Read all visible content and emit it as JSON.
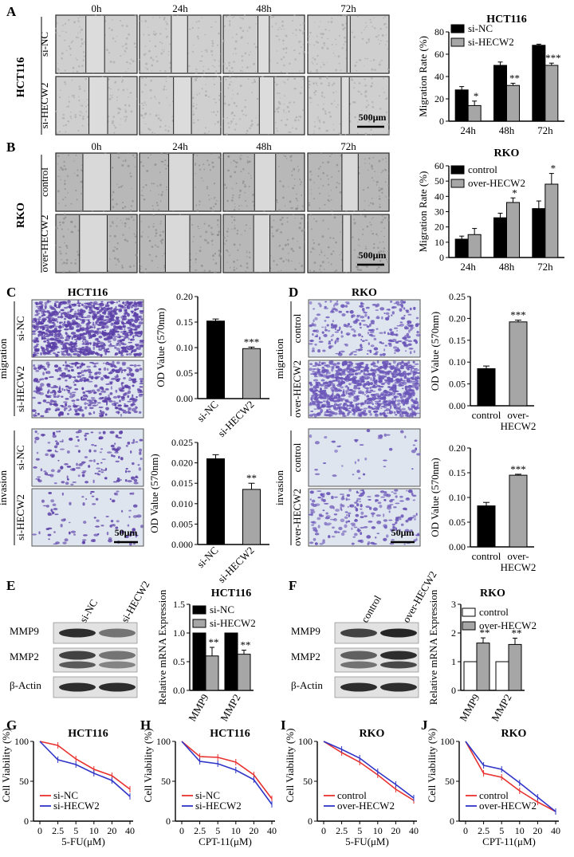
{
  "panels": {
    "A": {
      "label": "A",
      "times": [
        "0h",
        "24h",
        "48h",
        "72h"
      ],
      "cell_line": "HCT116",
      "rows": [
        "si-NC",
        "si-HECW2"
      ],
      "scale": "500μm",
      "bg": "#cfcfcf",
      "gap_fraction_0h_24h_48h_72h": [
        0.23,
        0.2,
        0.14,
        0.04
      ]
    },
    "B": {
      "label": "B",
      "times": [
        "0h",
        "24h",
        "48h",
        "72h"
      ],
      "cell_line": "RKO",
      "rows": [
        "control",
        "over-HECW2"
      ],
      "scale": "500μm",
      "bg": "#b8b8b8"
    },
    "C": {
      "label": "C",
      "title": "HCT116",
      "row_group_1": "migration",
      "row_group_2": "invasion",
      "rows": [
        "si-NC",
        "si-HECW2"
      ],
      "scale": "50μm",
      "stain_color": "#5b3fa8"
    },
    "D": {
      "label": "D",
      "title": "RKO",
      "row_group_1": "migration",
      "row_group_2": "invasion",
      "rows": [
        "control",
        "over-HECW2"
      ],
      "scale": "50μm",
      "stain_color": "#6a55b8"
    },
    "E": {
      "label": "E",
      "lanes": [
        "si-NC",
        "si-HECW2"
      ],
      "blots": [
        "MMP9",
        "MMP2",
        "β-Actin"
      ]
    },
    "F": {
      "label": "F",
      "lanes": [
        "control",
        "over-HECW2"
      ],
      "blots": [
        "MMP9",
        "MMP2",
        "β-Actin"
      ]
    },
    "G": {
      "label": "G"
    },
    "H": {
      "label": "H"
    },
    "I": {
      "label": "I"
    },
    "J": {
      "label": "J"
    }
  },
  "chart_data": [
    {
      "id": "A-chart",
      "type": "bar",
      "title": "HCT116",
      "ylabel": "Migration Rate (%)",
      "categories": [
        "24h",
        "48h",
        "72h"
      ],
      "ylim": [
        0,
        80
      ],
      "yticks": [
        0,
        20,
        40,
        60,
        80
      ],
      "legend": "top-left",
      "series": [
        {
          "name": "si-NC",
          "values": [
            28,
            50,
            68
          ],
          "errors": [
            3,
            3,
            1
          ],
          "color": "#000000"
        },
        {
          "name": "si-HECW2",
          "values": [
            14,
            32,
            50
          ],
          "errors": [
            4,
            2,
            2
          ],
          "color": "#a6a6a6"
        }
      ],
      "significance": [
        "*",
        "**",
        "***"
      ]
    },
    {
      "id": "B-chart",
      "type": "bar",
      "title": "RKO",
      "ylabel": "Migration Rate (%)",
      "categories": [
        "24h",
        "48h",
        "72h"
      ],
      "ylim": [
        0,
        60
      ],
      "yticks": [
        0,
        10,
        20,
        30,
        40,
        50,
        60
      ],
      "legend": "top-left",
      "series": [
        {
          "name": "control",
          "values": [
            12,
            26,
            32
          ],
          "errors": [
            2,
            3,
            5
          ],
          "color": "#000000"
        },
        {
          "name": "over-HECW2",
          "values": [
            15,
            36,
            48
          ],
          "errors": [
            4,
            3,
            7
          ],
          "color": "#a6a6a6"
        }
      ],
      "significance": [
        "",
        "*",
        "*"
      ]
    },
    {
      "id": "C-migration",
      "type": "bar",
      "ylabel": "OD Value (570nm)",
      "categories": [
        "si-NC",
        "si-HECW2"
      ],
      "ylim": [
        0,
        0.2
      ],
      "yticks": [
        "0.00",
        "0.05",
        "0.10",
        "0.15",
        "0.20"
      ],
      "series": [
        {
          "values": [
            0.152,
            0.098
          ],
          "errors": [
            0.004,
            0.003
          ],
          "colors": [
            "#000000",
            "#a6a6a6"
          ]
        }
      ],
      "significance": [
        "",
        "***"
      ]
    },
    {
      "id": "C-invasion",
      "type": "bar",
      "ylabel": "OD Value (570nm)",
      "categories": [
        "si-NC",
        "si-HECW2"
      ],
      "ylim": [
        0,
        0.025
      ],
      "yticks": [
        "0.000",
        "0.005",
        "0.010",
        "0.015",
        "0.020",
        "0.025"
      ],
      "series": [
        {
          "values": [
            0.021,
            0.0135
          ],
          "errors": [
            0.001,
            0.0015
          ],
          "colors": [
            "#000000",
            "#a6a6a6"
          ]
        }
      ],
      "significance": [
        "",
        "**"
      ]
    },
    {
      "id": "D-migration",
      "type": "bar",
      "ylabel": "OD Value (570nm)",
      "categories": [
        "control",
        "over-HECW2"
      ],
      "category_lines": [
        [
          "control"
        ],
        [
          "over-",
          "HECW2"
        ]
      ],
      "ylim": [
        0,
        0.25
      ],
      "yticks": [
        "0.00",
        "0.05",
        "0.10",
        "0.15",
        "0.20",
        "0.25"
      ],
      "series": [
        {
          "values": [
            0.085,
            0.192
          ],
          "errors": [
            0.006,
            0.004
          ],
          "colors": [
            "#000000",
            "#a6a6a6"
          ]
        }
      ],
      "significance": [
        "",
        "***"
      ]
    },
    {
      "id": "D-invasion",
      "type": "bar",
      "ylabel": "OD Value (570nm)",
      "categories": [
        "control",
        "over-HECW2"
      ],
      "category_lines": [
        [
          "control"
        ],
        [
          "over-",
          "HECW2"
        ]
      ],
      "ylim": [
        0,
        0.2
      ],
      "yticks": [
        "0.00",
        "0.05",
        "0.10",
        "0.15",
        "0.20"
      ],
      "series": [
        {
          "values": [
            0.083,
            0.145
          ],
          "errors": [
            0.007,
            0.002
          ],
          "colors": [
            "#000000",
            "#a6a6a6"
          ]
        }
      ],
      "significance": [
        "",
        "***"
      ]
    },
    {
      "id": "E-chart",
      "type": "bar",
      "title": "HCT116",
      "ylabel": "Relative mRNA Expression",
      "categories": [
        "MMP9",
        "MMP2"
      ],
      "ylim": [
        0,
        1.5
      ],
      "yticks": [
        "0.0",
        "0.5",
        "1.0",
        "1.5"
      ],
      "legend": "top-left",
      "series": [
        {
          "name": "si-NC",
          "values": [
            1.0,
            1.0
          ],
          "errors": [
            0,
            0
          ],
          "color": "#000000"
        },
        {
          "name": "si-HECW2",
          "values": [
            0.6,
            0.63
          ],
          "errors": [
            0.15,
            0.07
          ],
          "color": "#a6a6a6"
        }
      ],
      "significance": [
        "**",
        "**"
      ]
    },
    {
      "id": "F-chart",
      "type": "bar",
      "title": "RKO",
      "ylabel": "Relative mRNA Expression",
      "categories": [
        "MMP9",
        "MMP2"
      ],
      "ylim": [
        0,
        3
      ],
      "yticks": [
        "0",
        "1",
        "2",
        "3"
      ],
      "legend": "top-left",
      "series": [
        {
          "name": "control",
          "values": [
            1.0,
            1.0
          ],
          "errors": [
            0,
            0
          ],
          "color": "#ffffff"
        },
        {
          "name": "over-HECW2",
          "values": [
            1.65,
            1.6
          ],
          "errors": [
            0.18,
            0.22
          ],
          "color": "#a6a6a6"
        }
      ],
      "significance": [
        "**",
        "**"
      ]
    },
    {
      "id": "G-chart",
      "type": "line",
      "title": "HCT116",
      "ylabel": "Cell Viability (%)",
      "xlabel": "5-FU(μM)",
      "categories": [
        "0",
        "2.5",
        "5",
        "10",
        "20",
        "40"
      ],
      "ylim": [
        0,
        100
      ],
      "yticks": [
        0,
        50,
        100
      ],
      "legend": "bottom-left",
      "series": [
        {
          "name": "si-NC",
          "values": [
            100,
            95,
            78,
            65,
            57,
            40
          ],
          "color": "#e8322f"
        },
        {
          "name": "si-HECW2",
          "values": [
            100,
            77,
            71,
            60,
            51,
            31
          ],
          "color": "#2f35c8"
        }
      ]
    },
    {
      "id": "H-chart",
      "type": "line",
      "title": "HCT116",
      "ylabel": "Cell Viability (%)",
      "xlabel": "CPT-11(μM)",
      "categories": [
        "0",
        "2.5",
        "5",
        "10",
        "20",
        "40"
      ],
      "ylim": [
        0,
        100
      ],
      "yticks": [
        0,
        50,
        100
      ],
      "legend": "bottom-left",
      "series": [
        {
          "name": "si-NC",
          "values": [
            100,
            81,
            80,
            74,
            58,
            28
          ],
          "color": "#e8322f"
        },
        {
          "name": "si-HECW2",
          "values": [
            100,
            75,
            72,
            64,
            52,
            21
          ],
          "color": "#2f35c8"
        }
      ]
    },
    {
      "id": "I-chart",
      "type": "line",
      "title": "RKO",
      "ylabel": "Cell Viability (%)",
      "xlabel": "5-FU(μM)",
      "categories": [
        "0",
        "2.5",
        "5",
        "10",
        "20",
        "40"
      ],
      "ylim": [
        0,
        100
      ],
      "yticks": [
        0,
        50,
        100
      ],
      "legend": "bottom-left",
      "series": [
        {
          "name": "control",
          "values": [
            100,
            86,
            74,
            58,
            40,
            26
          ],
          "color": "#e8322f"
        },
        {
          "name": "over-HECW2",
          "values": [
            100,
            90,
            79,
            62,
            46,
            29
          ],
          "color": "#2f35c8"
        }
      ]
    },
    {
      "id": "J-chart",
      "type": "line",
      "title": "RKO",
      "ylabel": "Cell Viability (%)",
      "xlabel": "CPT-11(μM)",
      "categories": [
        "0",
        "2.5",
        "5",
        "10",
        "20",
        "40"
      ],
      "ylim": [
        0,
        100
      ],
      "yticks": [
        0,
        50,
        100
      ],
      "legend": "bottom-left",
      "series": [
        {
          "name": "control",
          "values": [
            100,
            60,
            55,
            38,
            24,
            12
          ],
          "color": "#e8322f"
        },
        {
          "name": "over-HECW2",
          "values": [
            100,
            70,
            65,
            48,
            30,
            12
          ],
          "color": "#2f35c8"
        }
      ]
    }
  ]
}
